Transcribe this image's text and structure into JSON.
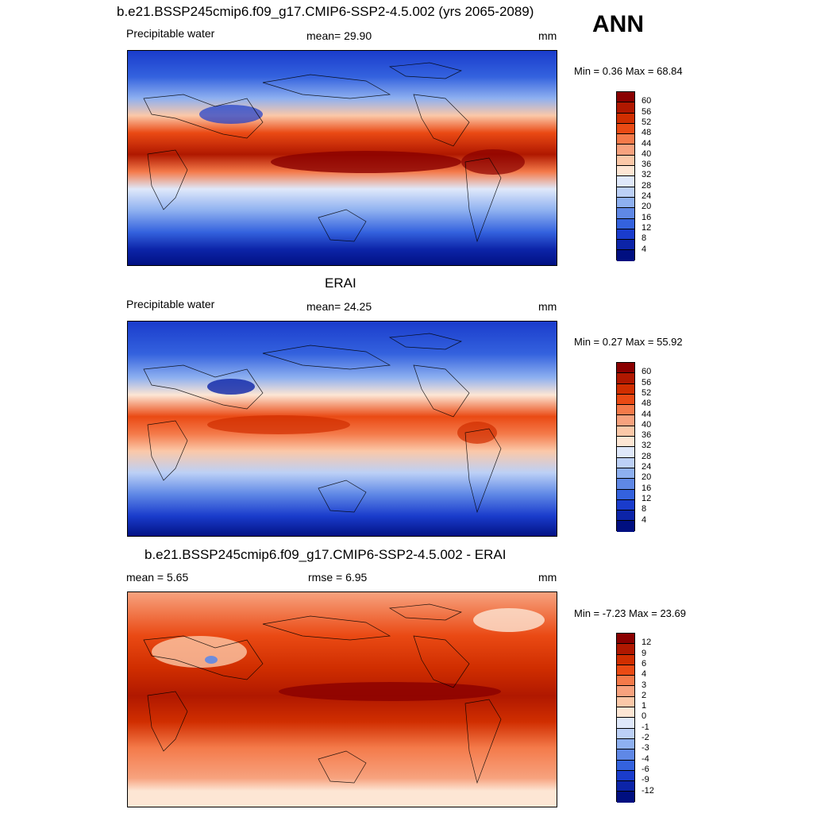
{
  "season": "ANN",
  "panels": [
    {
      "title": "b.e21.BSSP245cmip6.f09_g17.CMIP6-SSP2-4.5.002 (yrs 2065-2089)",
      "left_label": "Precipitable water",
      "center_label": "mean=  29.90",
      "units": "mm",
      "min_label": "Min =",
      "min_value": "0.36",
      "max_label": "Max =",
      "max_value": "68.84",
      "colorbar_ticks": [
        "60",
        "56",
        "52",
        "48",
        "44",
        "40",
        "36",
        "32",
        "28",
        "24",
        "20",
        "16",
        "12",
        "8",
        "4"
      ],
      "colorbar_colors": [
        "#8a0000",
        "#b01800",
        "#d02e00",
        "#ea4a14",
        "#f47a4a",
        "#f7a27e",
        "#fbc8a8",
        "#fde6d4",
        "#dfe8fa",
        "#bcd0f6",
        "#8eb0f0",
        "#5f88e6",
        "#3462de",
        "#1a3ccc",
        "#0c24a8",
        "#000f80"
      ]
    },
    {
      "title": "ERAI",
      "left_label": "Precipitable water",
      "center_label": "mean=  24.25",
      "units": "mm",
      "min_label": "Min =",
      "min_value": "0.27",
      "max_label": "Max =",
      "max_value": "55.92",
      "colorbar_ticks": [
        "60",
        "56",
        "52",
        "48",
        "44",
        "40",
        "36",
        "32",
        "28",
        "24",
        "20",
        "16",
        "12",
        "8",
        "4"
      ],
      "colorbar_colors": [
        "#8a0000",
        "#b01800",
        "#d02e00",
        "#ea4a14",
        "#f47a4a",
        "#f7a27e",
        "#fbc8a8",
        "#fde6d4",
        "#dfe8fa",
        "#bcd0f6",
        "#8eb0f0",
        "#5f88e6",
        "#3462de",
        "#1a3ccc",
        "#0c24a8",
        "#000f80"
      ]
    },
    {
      "title": "b.e21.BSSP245cmip6.f09_g17.CMIP6-SSP2-4.5.002 - ERAI",
      "left_label": "mean =   5.65",
      "center_label": "rmse =   6.95",
      "units": "mm",
      "min_label": "Min =",
      "min_value": "-7.23",
      "max_label": "Max =",
      "max_value": "23.69",
      "colorbar_ticks": [
        "12",
        "9",
        "6",
        "4",
        "3",
        "2",
        "1",
        "0",
        "-1",
        "-2",
        "-3",
        "-4",
        "-6",
        "-9",
        "-12"
      ],
      "colorbar_colors": [
        "#8a0000",
        "#b01800",
        "#d02e00",
        "#ea4a14",
        "#f47a4a",
        "#f7a27e",
        "#fbc8a8",
        "#fde6d4",
        "#dfe8fa",
        "#bcd0f6",
        "#8eb0f0",
        "#5f88e6",
        "#3462de",
        "#1a3ccc",
        "#0c24a8",
        "#000f80"
      ]
    }
  ]
}
